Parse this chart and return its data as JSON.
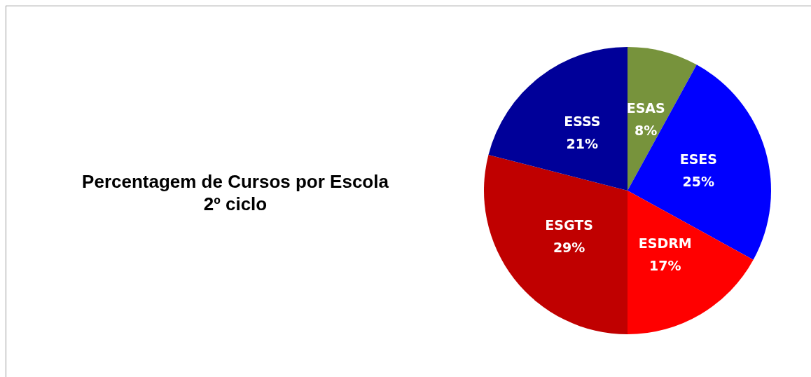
{
  "chart_data": {
    "type": "pie",
    "title": "Percentagem de Cursos por Escola",
    "subtitle": "2º ciclo",
    "categories": [
      "ESAS",
      "ESES",
      "ESDRM",
      "ESGTS",
      "ESSS"
    ],
    "values": [
      8,
      25,
      17,
      29,
      21
    ],
    "colors": [
      "#77933c",
      "#0000ff",
      "#ff0000",
      "#c00000",
      "#000099"
    ],
    "value_labels": [
      "8%",
      "25%",
      "17%",
      "29%",
      "21%"
    ],
    "legend": false
  }
}
